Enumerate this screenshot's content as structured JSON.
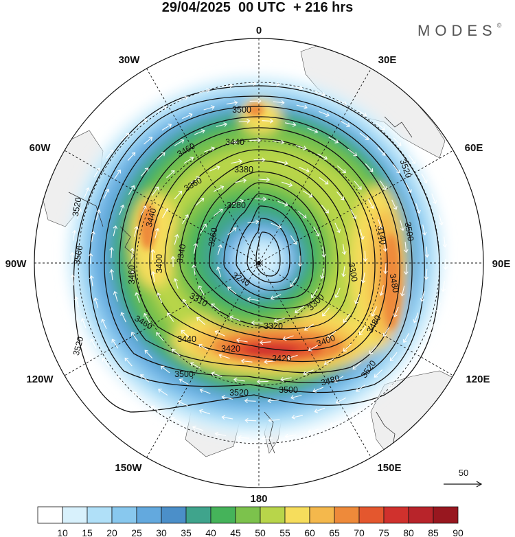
{
  "title": "29/04/2025  00 UTC  + 216 hrs",
  "brand": "MODES",
  "brand_mark": "©",
  "longitude_labels": [
    "0",
    "30E",
    "60E",
    "90E",
    "120E",
    "150E",
    "180",
    "150W",
    "120W",
    "90W",
    "60W",
    "30W"
  ],
  "contour_labels": [
    "3500",
    "3440",
    "3460",
    "3380",
    "3360",
    "3280",
    "3260",
    "3520",
    "3500",
    "3440",
    "3400",
    "3340",
    "3140",
    "3500",
    "3460",
    "3300",
    "3240",
    "3310",
    "3300",
    "3480",
    "3460",
    "3320",
    "3440",
    "3420",
    "3420",
    "3400",
    "3480",
    "3480",
    "3500",
    "3500",
    "3520",
    "3520",
    "3520",
    "3520"
  ],
  "vector_reference": {
    "label": "50"
  },
  "colorbar": {
    "labels": [
      "10",
      "15",
      "20",
      "25",
      "30",
      "35",
      "40",
      "45",
      "50",
      "55",
      "60",
      "65",
      "70",
      "75",
      "80",
      "85",
      "90"
    ],
    "colors": [
      "#ffffff",
      "#d8f1fc",
      "#b0e0f8",
      "#88c8ee",
      "#63a9de",
      "#4b8fc9",
      "#3fa48c",
      "#45b35a",
      "#7cc24c",
      "#b8d54a",
      "#f6dd5c",
      "#f4b84c",
      "#ee8a3a",
      "#e4572e",
      "#d0312d",
      "#b8242a",
      "#98171f"
    ]
  },
  "wind_speed_colors": {
    "c15": "#d8f1fc",
    "c20": "#b0e0f8",
    "c25": "#88c8ee",
    "c30": "#63a9de",
    "c35": "#4b8fc9",
    "c40": "#3fa48c",
    "c45": "#45b35a",
    "c50": "#7cc24c",
    "c55": "#b8d54a",
    "c60": "#f6dd5c",
    "c65": "#f4b84c",
    "c70": "#ee8a3a",
    "c75": "#e4572e",
    "c80": "#d0312d"
  }
}
